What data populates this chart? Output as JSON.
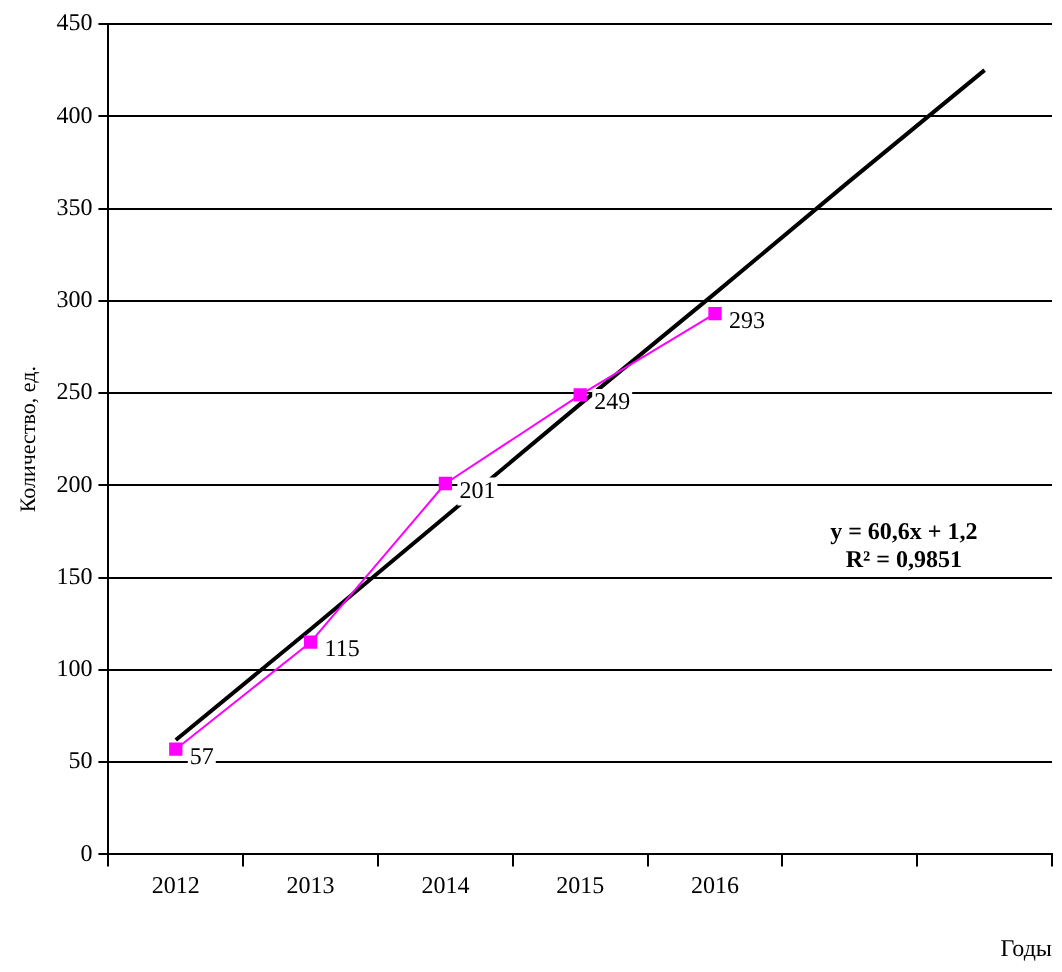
{
  "chart_data": {
    "type": "line",
    "ylabel": "Количество, ед.",
    "xlabel": "Годы",
    "categories": [
      "2012",
      "2013",
      "2014",
      "2015",
      "2016",
      null,
      null
    ],
    "series": [
      {
        "color": "#ff00ff",
        "values": [
          57,
          115,
          201,
          249,
          293,
          null,
          null
        ],
        "value_labels": [
          "57",
          "115",
          "201",
          "249",
          "293",
          null,
          null
        ],
        "marker": "square"
      },
      {
        "color": "#000000",
        "values": [
          62,
          122,
          183,
          244,
          304,
          365,
          425
        ],
        "marker": "none"
      }
    ],
    "ylim": [
      0,
      450
    ],
    "yticks": [
      0,
      50,
      100,
      150,
      200,
      250,
      300,
      350,
      400,
      450
    ],
    "grid": "y",
    "legend": false,
    "annotations": [
      "y = 60,6x + 1,2",
      "R² = 0,9851"
    ]
  }
}
